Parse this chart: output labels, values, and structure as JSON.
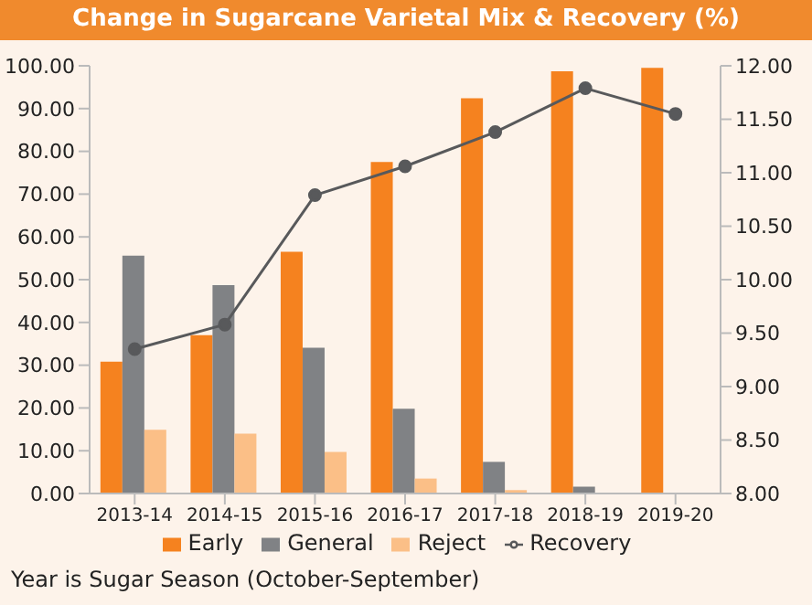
{
  "chart_data": {
    "type": "bar",
    "title": "Change in Sugarcane Varietal Mix & Recovery (%)",
    "categories": [
      "2013-14",
      "2014-15",
      "2015-16",
      "2016-17",
      "2017-18",
      "2018-19",
      "2019-20"
    ],
    "series": [
      {
        "name": "Early",
        "color": "#f5821f",
        "values": [
          30.8,
          37.0,
          56.5,
          77.5,
          92.4,
          98.7,
          99.5
        ]
      },
      {
        "name": "General",
        "color": "#808285",
        "values": [
          55.6,
          48.7,
          34.1,
          19.8,
          7.4,
          1.6,
          0
        ]
      },
      {
        "name": "Reject",
        "color": "#fbbf87",
        "values": [
          14.9,
          14.0,
          9.7,
          3.5,
          0.8,
          0,
          0
        ]
      },
      {
        "name": "Recovery",
        "type": "line",
        "axis": "y2",
        "color": "#58595b",
        "values": [
          9.35,
          9.58,
          10.79,
          11.06,
          11.38,
          11.79,
          11.55
        ]
      }
    ],
    "ylim": [
      0,
      100
    ],
    "yticks": [
      {
        "value": 0,
        "label": "0.00"
      },
      {
        "value": 10,
        "label": "10.00"
      },
      {
        "value": 20,
        "label": "20.00"
      },
      {
        "value": 30,
        "label": "30.00"
      },
      {
        "value": 40,
        "label": "40.00"
      },
      {
        "value": 50,
        "label": "50.00"
      },
      {
        "value": 60,
        "label": "60.00"
      },
      {
        "value": 70,
        "label": "70.00"
      },
      {
        "value": 80,
        "label": "80.00"
      },
      {
        "value": 90,
        "label": "90.00"
      },
      {
        "value": 100,
        "label": "100.00"
      }
    ],
    "y2lim": [
      8,
      12
    ],
    "y2ticks": [
      {
        "value": 8,
        "label": "8.00"
      },
      {
        "value": 8.5,
        "label": "8.50"
      },
      {
        "value": 9,
        "label": "9.00"
      },
      {
        "value": 9.5,
        "label": "9.50"
      },
      {
        "value": 10,
        "label": "10.00"
      },
      {
        "value": 10.5,
        "label": "10.50"
      },
      {
        "value": 11,
        "label": "11.00"
      },
      {
        "value": 11.5,
        "label": "11.50"
      },
      {
        "value": 12,
        "label": "12.00"
      }
    ],
    "marker": "circle",
    "line_style": "solid",
    "legend": "bottom",
    "annotations": [
      "Year is Sugar Season (October-September)"
    ]
  }
}
